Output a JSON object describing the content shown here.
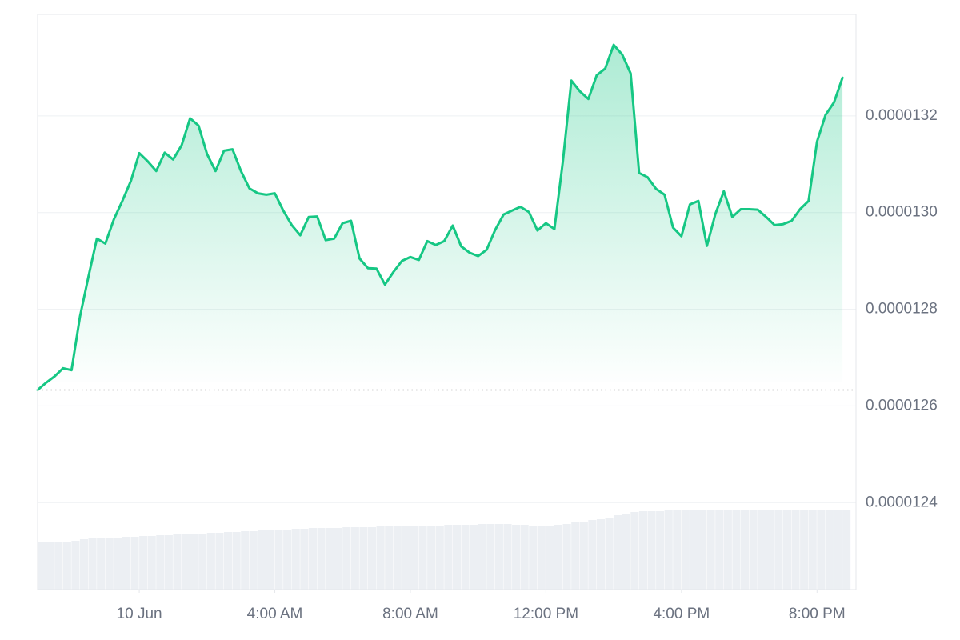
{
  "chart_data": {
    "type": "line",
    "color": "#16c784",
    "grid": true,
    "x": [
      -3,
      -2.75,
      -2.5,
      -2.25,
      -2,
      -1.75,
      -1.5,
      -1.25,
      -1,
      -0.75,
      -0.5,
      -0.25,
      0,
      0.25,
      0.5,
      0.75,
      1,
      1.25,
      1.5,
      1.75,
      2,
      2.25,
      2.5,
      2.75,
      3,
      3.25,
      3.5,
      3.75,
      4,
      4.25,
      4.5,
      4.75,
      5,
      5.25,
      5.5,
      5.75,
      6,
      6.25,
      6.5,
      6.75,
      7,
      7.25,
      7.5,
      7.75,
      8,
      8.25,
      8.5,
      8.75,
      9,
      9.25,
      9.5,
      9.75,
      10,
      10.25,
      10.5,
      10.75,
      11,
      11.25,
      11.5,
      11.75,
      12,
      12.25,
      12.5,
      12.75,
      13,
      13.25,
      13.5,
      13.75,
      14,
      14.25,
      14.5,
      14.75,
      15,
      15.25,
      15.5,
      15.75,
      16,
      16.25,
      16.5,
      16.75,
      17,
      17.25,
      17.5,
      17.75,
      18,
      18.25,
      18.5,
      18.75,
      19,
      19.25,
      19.5,
      19.75,
      20,
      20.25,
      20.5,
      20.75
    ],
    "values": [
      1.2633e-05,
      1.2648e-05,
      1.2661e-05,
      1.2678e-05,
      1.2674e-05,
      1.2785e-05,
      1.2867e-05,
      1.2946e-05,
      1.2936e-05,
      1.2986e-05,
      1.3024e-05,
      1.3065e-05,
      1.3123e-05,
      1.3106e-05,
      1.3086e-05,
      1.3124e-05,
      1.311e-05,
      1.3139e-05,
      1.3195e-05,
      1.318e-05,
      1.3121e-05,
      1.3086e-05,
      1.3128e-05,
      1.3131e-05,
      1.3086e-05,
      1.305e-05,
      1.304e-05,
      1.3037e-05,
      1.304e-05,
      1.3004e-05,
      1.2974e-05,
      1.2953e-05,
      1.2991e-05,
      1.2992e-05,
      1.2943e-05,
      1.2946e-05,
      1.2978e-05,
      1.2983e-05,
      1.2905e-05,
      1.2885e-05,
      1.2884e-05,
      1.2851e-05,
      1.2877e-05,
      1.29e-05,
      1.2908e-05,
      1.2902e-05,
      1.2941e-05,
      1.2933e-05,
      1.2941e-05,
      1.2973e-05,
      1.293e-05,
      1.2917e-05,
      1.291e-05,
      1.2923e-05,
      1.2964e-05,
      1.2996e-05,
      1.3004e-05,
      1.3012e-05,
      1.3001e-05,
      1.2963e-05,
      1.2978e-05,
      1.2966e-05,
      1.3106e-05,
      1.3273e-05,
      1.3251e-05,
      1.3235e-05,
      1.3284e-05,
      1.3298e-05,
      1.3347e-05,
      1.3327e-05,
      1.3288e-05,
      1.3082e-05,
      1.3073e-05,
      1.3049e-05,
      1.3037e-05,
      1.2969e-05,
      1.2951e-05,
      1.3017e-05,
      1.3024e-05,
      1.2931e-05,
      1.2997e-05,
      1.3044e-05,
      1.2991e-05,
      1.3007e-05,
      1.3007e-05,
      1.3006e-05,
      1.2991e-05,
      1.2974e-05,
      1.2976e-05,
      1.2983e-05,
      1.3007e-05,
      1.3024e-05,
      1.3147e-05,
      1.3202e-05,
      1.3228e-05,
      1.3279e-05
    ],
    "xlim": [
      -3,
      21.15
    ],
    "xticks": [
      {
        "value": 0,
        "label": "10 Jun"
      },
      {
        "value": 4,
        "label": "4:00 AM"
      },
      {
        "value": 8,
        "label": "8:00 AM"
      },
      {
        "value": 12,
        "label": "12:00 PM"
      },
      {
        "value": 16,
        "label": "4:00 PM"
      },
      {
        "value": 20,
        "label": "8:00 PM"
      }
    ],
    "ylim": [
      1.222e-05,
      1.341e-05
    ],
    "yticks": [
      1.24e-05,
      1.26e-05,
      1.28e-05,
      {
        "value": 1.3e-05,
        "label": "0.0000130"
      },
      1.32e-05
    ],
    "volume": {
      "color": "#eceff3",
      "ylim": [
        0,
        100
      ],
      "values": [
        59,
        59,
        59,
        60,
        61,
        63,
        64,
        64,
        65,
        65,
        66,
        66,
        67,
        67,
        68,
        68,
        69,
        69,
        70,
        70,
        71,
        71,
        72,
        72,
        73,
        73,
        74,
        74,
        75,
        75,
        76,
        76,
        77,
        77,
        77,
        77,
        78,
        78,
        78,
        78,
        79,
        79,
        79,
        79,
        80,
        80,
        80,
        80,
        81,
        81,
        81,
        81,
        82,
        82,
        82,
        82,
        81,
        81,
        80,
        80,
        80,
        81,
        82,
        84,
        85,
        87,
        88,
        90,
        93,
        95,
        97,
        98,
        98,
        98,
        99,
        99,
        100,
        100,
        100,
        100,
        100,
        100,
        100,
        100,
        100,
        99,
        99,
        99,
        99,
        99,
        99,
        99,
        100,
        100,
        100,
        100
      ]
    }
  }
}
